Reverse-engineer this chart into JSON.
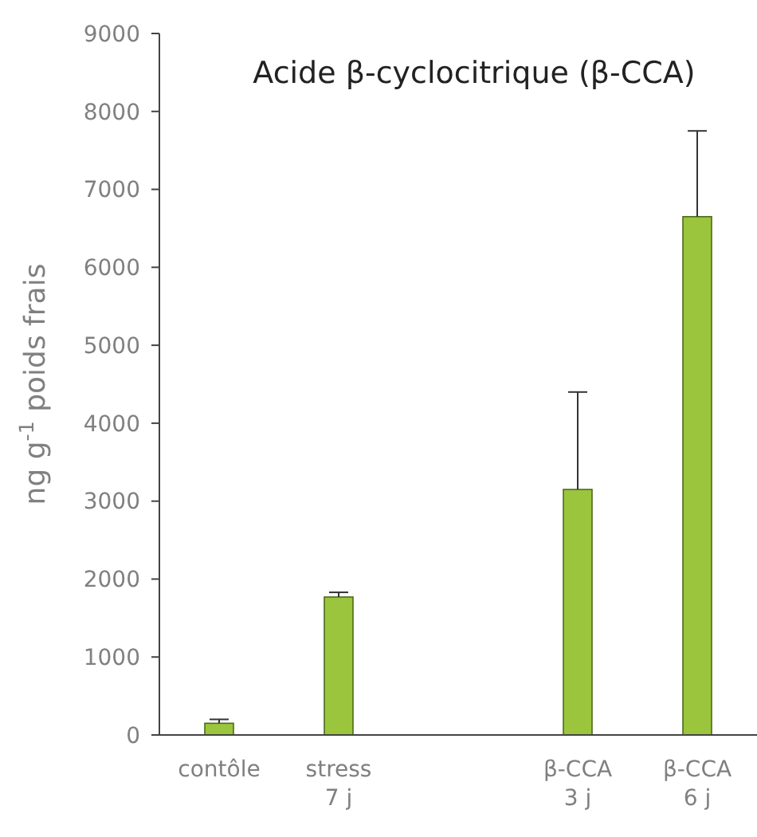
{
  "chart_data": {
    "type": "bar",
    "title": "Acide β-cyclocitrique (β-CCA)",
    "ylabel": "ng g$^{-1}$ poids frais",
    "categories": [
      "contôle",
      "stress\n7 j",
      null,
      "β-CCA\n3 j",
      "β-CCA\n6 j"
    ],
    "values": [
      150,
      1770,
      null,
      3150,
      6650
    ],
    "errors": [
      [
        150,
        200
      ],
      [
        1770,
        1830
      ],
      null,
      [
        3150,
        4400
      ],
      [
        6650,
        7750
      ]
    ],
    "color": "#9bc53d",
    "ylim": [
      0,
      9000
    ],
    "yticks": [
      0,
      1000,
      2000,
      3000,
      4000,
      5000,
      6000,
      7000,
      8000,
      9000
    ],
    "grid": false
  }
}
